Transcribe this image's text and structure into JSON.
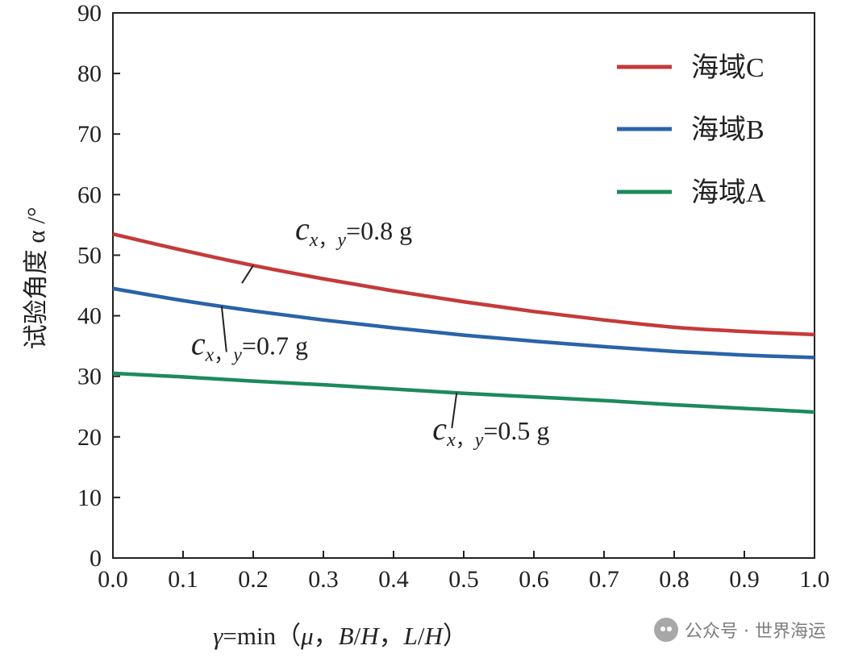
{
  "chart_data": {
    "type": "line",
    "xlabel": {
      "prefix": "γ",
      "fn": "=min（",
      "mu": "μ",
      "sep": "，",
      "b": "B",
      "slash": "/",
      "h": "H",
      "l": "L",
      "close": "）"
    },
    "ylabel": "试验角度 α /°",
    "xlim": [
      0.0,
      1.0
    ],
    "ylim": [
      0,
      90
    ],
    "x_ticks": [
      "0.0",
      "0.1",
      "0.2",
      "0.3",
      "0.4",
      "0.5",
      "0.6",
      "0.7",
      "0.8",
      "0.9",
      "1.0"
    ],
    "y_ticks": [
      "0",
      "10",
      "20",
      "30",
      "40",
      "50",
      "60",
      "70",
      "80",
      "90"
    ],
    "grid": false,
    "legend_position": "top-right",
    "series": [
      {
        "name": "海域C",
        "color": "#c53a3a",
        "x": [
          0.0,
          0.1,
          0.2,
          0.3,
          0.4,
          0.5,
          0.6,
          0.7,
          0.8,
          0.9,
          1.0
        ],
        "y": [
          53.5,
          50.8,
          48.3,
          46.1,
          44.1,
          42.3,
          40.7,
          39.3,
          38.1,
          37.4,
          36.9
        ]
      },
      {
        "name": "海域B",
        "color": "#2a63a8",
        "x": [
          0.0,
          0.1,
          0.2,
          0.3,
          0.4,
          0.5,
          0.6,
          0.7,
          0.8,
          0.9,
          1.0
        ],
        "y": [
          44.5,
          42.5,
          40.8,
          39.3,
          38.0,
          36.8,
          35.8,
          34.9,
          34.1,
          33.5,
          33.1
        ]
      },
      {
        "name": "海域A",
        "color": "#1d8a5b",
        "x": [
          0.0,
          0.1,
          0.2,
          0.3,
          0.4,
          0.5,
          0.6,
          0.7,
          0.8,
          0.9,
          1.0
        ],
        "y": [
          30.5,
          29.9,
          29.2,
          28.6,
          27.9,
          27.2,
          26.6,
          26.0,
          25.3,
          24.7,
          24.1
        ]
      }
    ],
    "annotations": [
      {
        "c": "c",
        "sub": "x",
        "sep": "，",
        "sub2": "y",
        "value": "=0.8 g",
        "series": "海域C",
        "anchor_x": 0.2,
        "anchor_y": 48.3
      },
      {
        "c": "c",
        "sub": "x",
        "sep": "，",
        "sub2": "y",
        "value": "=0.7 g",
        "series": "海域B",
        "anchor_x": 0.155,
        "anchor_y": 41.6
      },
      {
        "c": "c",
        "sub": "x",
        "sep": "，",
        "sub2": "y",
        "value": "=0.5 g",
        "series": "海域A",
        "anchor_x": 0.49,
        "anchor_y": 27.3
      }
    ]
  },
  "watermark": {
    "icon": "wechat-icon",
    "text": "公众号 · 世界海运"
  }
}
